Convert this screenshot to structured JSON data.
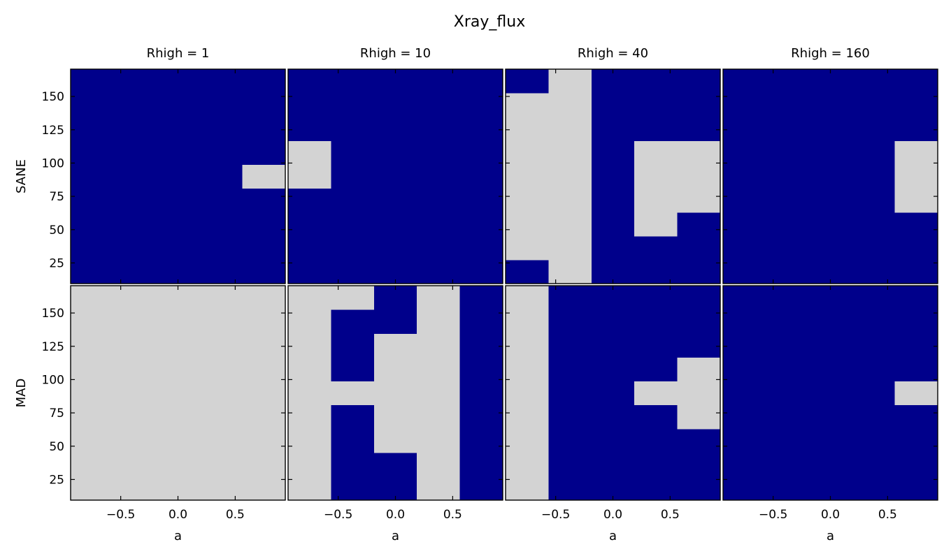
{
  "chart_data": {
    "type": "heatmap",
    "title": "Xray_flux",
    "column_titles": [
      "Rhigh = 1",
      "Rhigh = 10",
      "Rhigh = 40",
      "Rhigh = 160"
    ],
    "row_labels": [
      "SANE",
      "MAD"
    ],
    "xlabel": "a",
    "xlim": [
      -0.9375,
      0.9375
    ],
    "ylim": [
      9.5,
      170.5
    ],
    "x_ticks": [
      -0.5,
      0.0,
      0.5
    ],
    "x_tick_labels": [
      "−0.5",
      "0.0",
      "0.5"
    ],
    "y_ticks": [
      25,
      50,
      75,
      100,
      125,
      150
    ],
    "y_tick_labels": [
      "25",
      "50",
      "75",
      "100",
      "125",
      "150"
    ],
    "x_centers": [
      -0.75,
      -0.375,
      0.0,
      0.375,
      0.75
    ],
    "y_centers": [
      18.5,
      37,
      55.5,
      74,
      92.5,
      111,
      129.5,
      148,
      166.5
    ],
    "colors": {
      "0": "#00008B",
      "1": "#D3D3D3"
    },
    "panels": [
      [
        [
          [
            0,
            0,
            0,
            0,
            0
          ],
          [
            0,
            0,
            0,
            0,
            0
          ],
          [
            0,
            0,
            0,
            0,
            0
          ],
          [
            0,
            0,
            0,
            0,
            0
          ],
          [
            0,
            0,
            0,
            0,
            1
          ],
          [
            0,
            0,
            0,
            0,
            0
          ],
          [
            0,
            0,
            0,
            0,
            0
          ],
          [
            0,
            0,
            0,
            0,
            0
          ],
          [
            0,
            0,
            0,
            0,
            0
          ]
        ],
        [
          [
            0,
            0,
            0,
            0,
            0
          ],
          [
            0,
            0,
            0,
            0,
            0
          ],
          [
            0,
            0,
            0,
            0,
            0
          ],
          [
            0,
            0,
            0,
            0,
            0
          ],
          [
            1,
            0,
            0,
            0,
            0
          ],
          [
            1,
            0,
            0,
            0,
            0
          ],
          [
            0,
            0,
            0,
            0,
            0
          ],
          [
            0,
            0,
            0,
            0,
            0
          ],
          [
            0,
            0,
            0,
            0,
            0
          ]
        ],
        [
          [
            0,
            1,
            0,
            0,
            0
          ],
          [
            1,
            1,
            0,
            0,
            0
          ],
          [
            1,
            1,
            0,
            1,
            0
          ],
          [
            1,
            1,
            0,
            1,
            1
          ],
          [
            1,
            1,
            0,
            1,
            1
          ],
          [
            1,
            1,
            0,
            1,
            1
          ],
          [
            1,
            1,
            0,
            0,
            0
          ],
          [
            1,
            1,
            0,
            0,
            0
          ],
          [
            0,
            1,
            0,
            0,
            0
          ]
        ],
        [
          [
            0,
            0,
            0,
            0,
            0
          ],
          [
            0,
            0,
            0,
            0,
            0
          ],
          [
            0,
            0,
            0,
            0,
            0
          ],
          [
            0,
            0,
            0,
            0,
            1
          ],
          [
            0,
            0,
            0,
            0,
            1
          ],
          [
            0,
            0,
            0,
            0,
            1
          ],
          [
            0,
            0,
            0,
            0,
            0
          ],
          [
            0,
            0,
            0,
            0,
            0
          ],
          [
            0,
            0,
            0,
            0,
            0
          ]
        ]
      ],
      [
        [
          [
            1,
            1,
            1,
            1,
            1
          ],
          [
            1,
            1,
            1,
            1,
            1
          ],
          [
            1,
            1,
            1,
            1,
            1
          ],
          [
            1,
            1,
            1,
            1,
            1
          ],
          [
            1,
            1,
            1,
            1,
            1
          ],
          [
            1,
            1,
            1,
            1,
            1
          ],
          [
            1,
            1,
            1,
            1,
            1
          ],
          [
            1,
            1,
            1,
            1,
            1
          ],
          [
            1,
            1,
            1,
            1,
            1
          ]
        ],
        [
          [
            1,
            0,
            0,
            1,
            0
          ],
          [
            1,
            0,
            0,
            1,
            0
          ],
          [
            1,
            0,
            1,
            1,
            0
          ],
          [
            1,
            0,
            1,
            1,
            0
          ],
          [
            1,
            1,
            1,
            1,
            0
          ],
          [
            1,
            0,
            1,
            1,
            0
          ],
          [
            1,
            0,
            1,
            1,
            0
          ],
          [
            1,
            0,
            0,
            1,
            0
          ],
          [
            1,
            1,
            0,
            1,
            0
          ]
        ],
        [
          [
            1,
            0,
            0,
            0,
            0
          ],
          [
            1,
            0,
            0,
            0,
            0
          ],
          [
            1,
            0,
            0,
            0,
            0
          ],
          [
            1,
            0,
            0,
            0,
            1
          ],
          [
            1,
            0,
            0,
            1,
            1
          ],
          [
            1,
            0,
            0,
            0,
            1
          ],
          [
            1,
            0,
            0,
            0,
            0
          ],
          [
            1,
            0,
            0,
            0,
            0
          ],
          [
            1,
            0,
            0,
            0,
            0
          ]
        ],
        [
          [
            0,
            0,
            0,
            0,
            0
          ],
          [
            0,
            0,
            0,
            0,
            0
          ],
          [
            0,
            0,
            0,
            0,
            0
          ],
          [
            0,
            0,
            0,
            0,
            0
          ],
          [
            0,
            0,
            0,
            0,
            1
          ],
          [
            0,
            0,
            0,
            0,
            0
          ],
          [
            0,
            0,
            0,
            0,
            0
          ],
          [
            0,
            0,
            0,
            0,
            0
          ],
          [
            0,
            0,
            0,
            0,
            0
          ]
        ]
      ]
    ]
  }
}
